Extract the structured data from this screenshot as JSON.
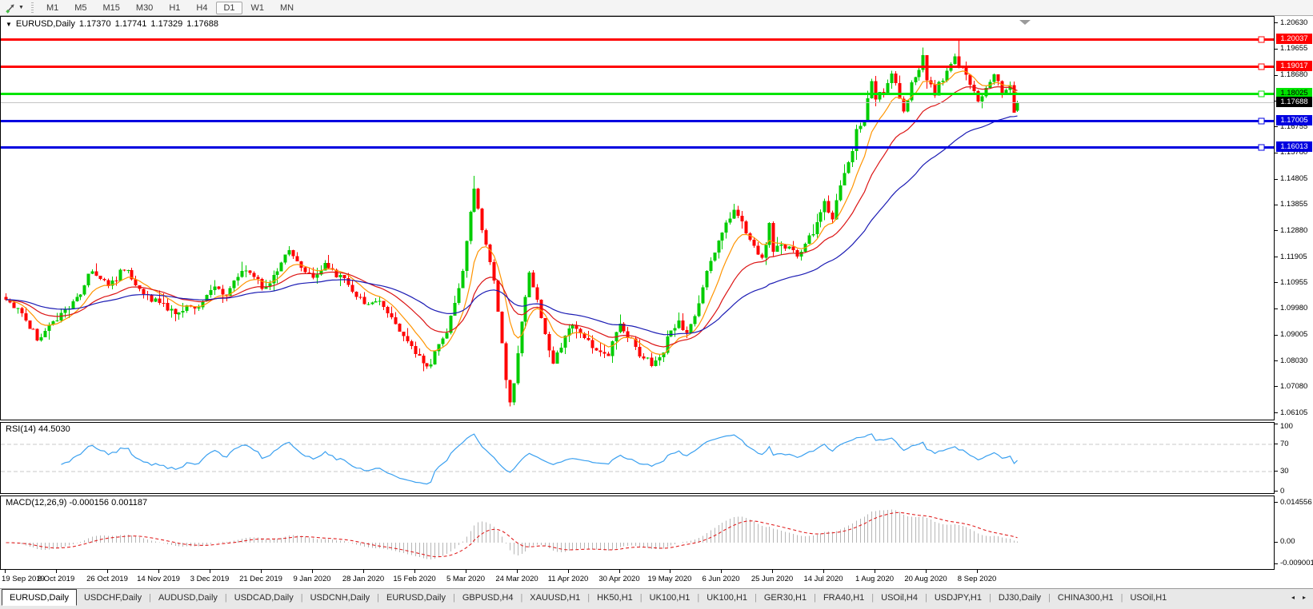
{
  "toolbar": {
    "timeframes": [
      {
        "label": "M1",
        "active": false
      },
      {
        "label": "M5",
        "active": false
      },
      {
        "label": "M15",
        "active": false
      },
      {
        "label": "M30",
        "active": false
      },
      {
        "label": "H1",
        "active": false
      },
      {
        "label": "H4",
        "active": false
      },
      {
        "label": "D1",
        "active": true
      },
      {
        "label": "W1",
        "active": false
      },
      {
        "label": "MN",
        "active": false
      }
    ],
    "dropdown_caret": "▼"
  },
  "chart": {
    "title": {
      "collapse_icon": "▼",
      "symbol": "EURUSD,Daily",
      "open": "1.17370",
      "high": "1.17741",
      "low": "1.17329",
      "close": "1.17688"
    },
    "price_axis": [
      "1.20630",
      "1.19655",
      "1.18680",
      "1.17705",
      "1.16755",
      "1.15780",
      "1.14805",
      "1.13855",
      "1.12880",
      "1.11905",
      "1.10955",
      "1.09980",
      "1.09005",
      "1.08030",
      "1.07080",
      "1.06105"
    ],
    "hlines": [
      {
        "value": "1.20037",
        "color": "#FF0000",
        "text_color": "#FFFFFF",
        "width": 3
      },
      {
        "value": "1.19017",
        "color": "#FF0000",
        "text_color": "#FFFFFF",
        "width": 3
      },
      {
        "value": "1.18025",
        "color": "#00E400",
        "text_color": "#000000",
        "width": 3
      },
      {
        "value": "1.17005",
        "color": "#0000E0",
        "text_color": "#FFFFFF",
        "width": 3
      },
      {
        "value": "1.16013",
        "color": "#0000E0",
        "text_color": "#FFFFFF",
        "width": 3
      }
    ],
    "current_price": {
      "value": "1.17688",
      "line_color": "#C4C4C4",
      "label_bg": "#000000",
      "label_text": "#FFFFFF"
    },
    "ma": [
      {
        "name": "ma-fast",
        "period": 9,
        "color": "#FF9400"
      },
      {
        "name": "ma-medium",
        "period": 22,
        "color": "#DC1414"
      },
      {
        "name": "ma-slow",
        "period": 50,
        "color": "#1C1CB4"
      }
    ],
    "series": {
      "candle_count": 258,
      "anchors": [
        [
          0,
          1.1044
        ],
        [
          4,
          1.098
        ],
        [
          8,
          1.0889
        ],
        [
          13,
          1.0957
        ],
        [
          18,
          1.1035
        ],
        [
          22,
          1.115
        ],
        [
          26,
          1.108
        ],
        [
          30,
          1.1152
        ],
        [
          35,
          1.105
        ],
        [
          39,
          1.1021
        ],
        [
          43,
          1.099
        ],
        [
          46,
          1.1008
        ],
        [
          50,
          1.1018
        ],
        [
          52,
          1.1081
        ],
        [
          56,
          1.105
        ],
        [
          59,
          1.113
        ],
        [
          62,
          1.1145
        ],
        [
          65,
          1.1078
        ],
        [
          68,
          1.112
        ],
        [
          72,
          1.1212
        ],
        [
          75,
          1.116
        ],
        [
          78,
          1.1106
        ],
        [
          81,
          1.116
        ],
        [
          83,
          1.1136
        ],
        [
          87,
          1.109
        ],
        [
          91,
          1.1022
        ],
        [
          94,
          1.1033
        ],
        [
          97,
          1.098
        ],
        [
          99,
          1.0946
        ],
        [
          102,
          1.087
        ],
        [
          104,
          1.0831
        ],
        [
          106,
          1.0795
        ],
        [
          108,
          1.0785
        ],
        [
          110,
          1.088
        ],
        [
          112,
          1.092
        ],
        [
          114,
          1.1026
        ],
        [
          116,
          1.113
        ],
        [
          117,
          1.124
        ],
        [
          119,
          1.1456
        ],
        [
          121,
          1.13
        ],
        [
          123,
          1.1184
        ],
        [
          125,
          1.1
        ],
        [
          127,
          1.073
        ],
        [
          128,
          1.066
        ],
        [
          129,
          1.0727
        ],
        [
          131,
          1.095
        ],
        [
          133,
          1.1147
        ],
        [
          135,
          1.1031
        ],
        [
          137,
          1.09
        ],
        [
          139,
          1.0791
        ],
        [
          141,
          1.086
        ],
        [
          143,
          1.0936
        ],
        [
          146,
          1.091
        ],
        [
          149,
          1.085
        ],
        [
          153,
          1.0821
        ],
        [
          156,
          1.0956
        ],
        [
          158,
          1.09
        ],
        [
          161,
          1.0834
        ],
        [
          164,
          1.0795
        ],
        [
          166,
          1.081
        ],
        [
          169,
          1.0924
        ],
        [
          171,
          1.095
        ],
        [
          173,
          1.0897
        ],
        [
          176,
          1.101
        ],
        [
          178,
          1.1134
        ],
        [
          180,
          1.12
        ],
        [
          182,
          1.129
        ],
        [
          185,
          1.1373
        ],
        [
          188,
          1.129
        ],
        [
          192,
          1.1177
        ],
        [
          194,
          1.1308
        ],
        [
          195,
          1.122
        ],
        [
          198,
          1.1234
        ],
        [
          201,
          1.12
        ],
        [
          205,
          1.1284
        ],
        [
          208,
          1.14
        ],
        [
          210,
          1.134
        ],
        [
          212,
          1.1448
        ],
        [
          214,
          1.154
        ],
        [
          216,
          1.1656
        ],
        [
          218,
          1.171
        ],
        [
          220,
          1.1847
        ],
        [
          221,
          1.1778
        ],
        [
          223,
          1.181
        ],
        [
          225,
          1.1876
        ],
        [
          227,
          1.179
        ],
        [
          228,
          1.174
        ],
        [
          230,
          1.183
        ],
        [
          233,
          1.1933
        ],
        [
          234,
          1.1858
        ],
        [
          236,
          1.179
        ],
        [
          237,
          1.1834
        ],
        [
          239,
          1.188
        ],
        [
          241,
          1.1935
        ],
        [
          242,
          1.1911
        ],
        [
          244,
          1.187
        ],
        [
          245,
          1.1839
        ],
        [
          247,
          1.1781
        ],
        [
          249,
          1.1815
        ],
        [
          251,
          1.1866
        ],
        [
          253,
          1.1816
        ],
        [
          255,
          1.1839
        ],
        [
          256,
          1.1737
        ],
        [
          257,
          1.17688
        ]
      ],
      "wick_overrides": {
        "8": {
          "low": 1.0879
        },
        "119": {
          "high": 1.1495
        },
        "128": {
          "low": 1.0636
        },
        "242": {
          "high": 1.2003
        },
        "256": {
          "low": 1.1731
        }
      },
      "last_candle": {
        "open": 1.1737,
        "high": 1.17741,
        "low": 1.17329,
        "close": 1.17688
      }
    }
  },
  "rsi": {
    "label": "RSI(14) 44.5030",
    "period": 14,
    "value": "44.5030",
    "axis": [
      "100",
      "70",
      "30",
      "0"
    ],
    "levels": [
      70,
      30
    ]
  },
  "macd": {
    "label": "MACD(12,26,9) -0.000156 0.001187",
    "fast": 12,
    "slow": 26,
    "signal": 9,
    "main_value": "-0.000156",
    "signal_value": "0.001187",
    "axis": [
      "0.014556",
      "0.00",
      "-0.009001"
    ]
  },
  "date_axis": {
    "labels": [
      "19 Sep 2019",
      "8 Oct 2019",
      "26 Oct 2019",
      "14 Nov 2019",
      "3 Dec 2019",
      "21 Dec 2019",
      "9 Jan 2020",
      "28 Jan 2020",
      "15 Feb 2020",
      "5 Mar 2020",
      "24 Mar 2020",
      "11 Apr 2020",
      "30 Apr 2020",
      "19 May 2020",
      "6 Jun 2020",
      "25 Jun 2020",
      "14 Jul 2020",
      "1 Aug 2020",
      "20 Aug 2020",
      "8 Sep 2020"
    ]
  },
  "tabs": {
    "items": [
      {
        "label": "EURUSD,Daily",
        "active": true
      },
      {
        "label": "USDCHF,Daily",
        "active": false
      },
      {
        "label": "AUDUSD,Daily",
        "active": false
      },
      {
        "label": "USDCAD,Daily",
        "active": false
      },
      {
        "label": "USDCNH,Daily",
        "active": false
      },
      {
        "label": "EURUSD,Daily",
        "active": false
      },
      {
        "label": "GBPUSD,H4",
        "active": false
      },
      {
        "label": "XAUUSD,H1",
        "active": false
      },
      {
        "label": "HK50,H1",
        "active": false
      },
      {
        "label": "UK100,H1",
        "active": false
      },
      {
        "label": "UK100,H1",
        "active": false
      },
      {
        "label": "GER30,H1",
        "active": false
      },
      {
        "label": "FRA40,H1",
        "active": false
      },
      {
        "label": "USOil,H4",
        "active": false
      },
      {
        "label": "USDJPY,H1",
        "active": false
      },
      {
        "label": "DJ30,Daily",
        "active": false
      },
      {
        "label": "CHINA300,H1",
        "active": false
      },
      {
        "label": "USOil,H1",
        "active": false
      }
    ],
    "scroll_left": "◂",
    "scroll_right": "▸"
  },
  "colors": {
    "candle_up": "#00CC00",
    "candle_down": "#FF0000",
    "rsi_line": "#3AA0F0",
    "rsi_level_line": "#C8C8C8",
    "macd_histogram": "#B6B6B6",
    "macd_signal": "#E02020",
    "shift_marker": "#9A9A9A"
  }
}
